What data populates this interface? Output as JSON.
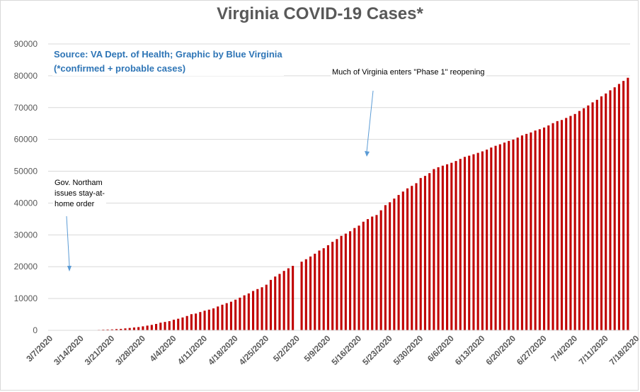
{
  "chart_data": {
    "type": "bar",
    "title": "Virginia COVID-19 Cases*",
    "xlabel": "",
    "ylabel": "",
    "ylim": [
      0,
      90000
    ],
    "yticks": [
      0,
      10000,
      20000,
      30000,
      40000,
      50000,
      60000,
      70000,
      80000,
      90000
    ],
    "xtick_labels": [
      "3/7/2020",
      "3/14/2020",
      "3/21/2020",
      "3/28/2020",
      "4/4/2020",
      "4/11/2020",
      "4/18/2020",
      "4/25/2020",
      "5/2/2020",
      "5/9/2020",
      "5/16/2020",
      "5/23/2020",
      "5/30/2020",
      "6/6/2020",
      "6/13/2020",
      "6/20/2020",
      "6/27/2020",
      "7/4/2020",
      "7/11/2020",
      "7/18/2020"
    ],
    "start_date": "3/7/2020",
    "bar_color": "#c00000",
    "grid": true,
    "values": [
      2,
      2,
      3,
      9,
      17,
      30,
      41,
      45,
      67,
      77,
      99,
      152,
      219,
      254,
      290,
      391,
      460,
      604,
      739,
      890,
      1020,
      1250,
      1484,
      1706,
      2012,
      2407,
      2637,
      2878,
      3333,
      3645,
      4042,
      4509,
      5077,
      5274,
      5747,
      6171,
      6500,
      6889,
      7491,
      8053,
      8537,
      8990,
      9630,
      10266,
      10998,
      11594,
      12366,
      12970,
      13535,
      14339,
      15846,
      16901,
      17731,
      18671,
      19492,
      20256,
      null,
      21570,
      22342,
      23196,
      24081,
      25070,
      25800,
      26746,
      27813,
      28672,
      29683,
      30388,
      31140,
      32145,
      32908,
      34137,
      34950,
      35749,
      36244,
      37727,
      39342,
      40249,
      41401,
      42533,
      43611,
      44607,
      45398,
      46239,
      47856,
      48532,
      49397,
      50681,
      51251,
      51738,
      52177,
      52647,
      53211,
      53869,
      54506,
      54886,
      55331,
      55775,
      56238,
      56793,
      57443,
      57994,
      58465,
      58994,
      59514,
      59946,
      60570,
      61247,
      61736,
      62189,
      62787,
      63203,
      63735,
      64393,
      65109,
      65748,
      66102,
      66740,
      67375,
      67988,
      68931,
      69782,
      70670,
      71642,
      72443,
      73527,
      74431,
      75433,
      76373,
      77430,
      78375,
      79371
    ]
  },
  "annotations": {
    "source_line1": "Source: VA Dept. of Health; Graphic by Blue Virginia",
    "source_line2": "(*confirmed + probable cases)",
    "phase1": "Much of Virginia enters \"Phase 1\" reopening",
    "northam_line1": "Gov. Northam",
    "northam_line2": "issues stay-at-",
    "northam_line3": "home order"
  }
}
